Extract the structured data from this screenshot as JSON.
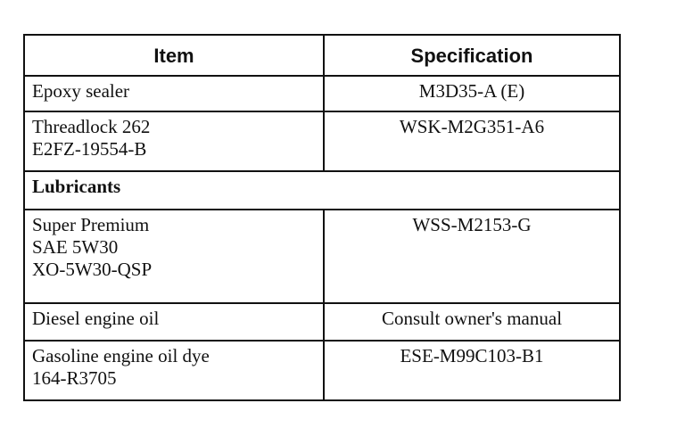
{
  "table": {
    "headers": [
      "Item",
      "Specification"
    ],
    "rows": [
      {
        "item": [
          "Epoxy sealer"
        ],
        "spec": "M3D35-A (E)"
      },
      {
        "item": [
          "Threadlock 262",
          "E2FZ-19554-B"
        ],
        "spec": "WSK-M2G351-A6"
      },
      {
        "section": "Lubricants"
      },
      {
        "item": [
          "Super Premium",
          "SAE 5W30",
          "XO-5W30-QSP"
        ],
        "spec": "WSS-M2153-G"
      },
      {
        "item": [
          "Diesel engine oil"
        ],
        "spec": "Consult owner's manual"
      },
      {
        "item": [
          "Gasoline engine oil dye",
          "164-R3705"
        ],
        "spec": "ESE-M99C103-B1"
      }
    ]
  }
}
